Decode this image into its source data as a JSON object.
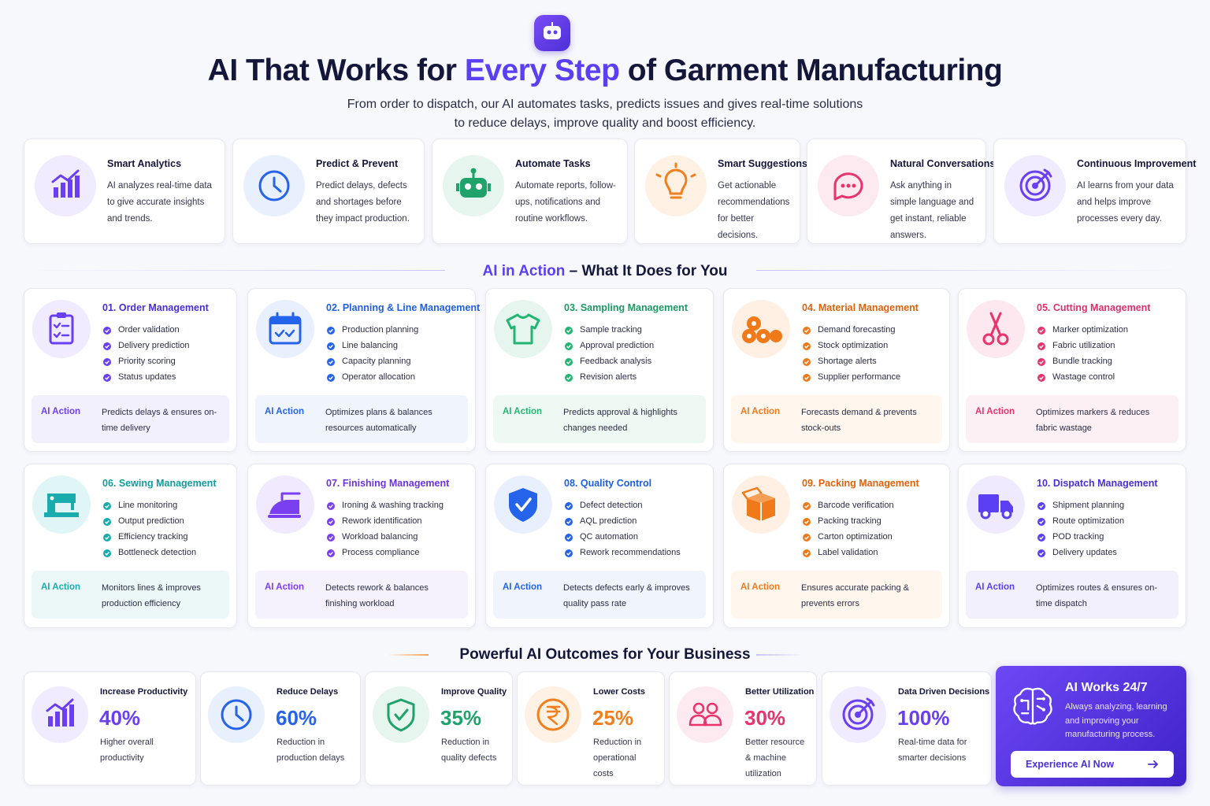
{
  "header": {
    "title": [
      "AI That Works for",
      "Every Step",
      "of Garment Manufacturing"
    ],
    "subtitle": [
      "From order to dispatch, our AI automates tasks, predicts issues and gives real-time solutions",
      "to reduce delays, improve quality and boost efficiency."
    ]
  },
  "features": [
    {
      "title": "Smart Analytics",
      "text": "AI analyzes real-time data to give accurate insights and trends."
    },
    {
      "title": "Predict & Prevent",
      "text": "Predict delays, defects and shortages before they impact production."
    },
    {
      "title": "Automate Tasks",
      "text": "Automate reports, follow-ups, notifications and routine workflows."
    },
    {
      "title": "Smart Suggestions",
      "text": "Get actionable recommendations for better decisions."
    },
    {
      "title": "Natural Conversations",
      "text": "Ask anything in simple language and get instant, reliable answers."
    },
    {
      "title": "Continuous Improvement",
      "text": "AI learns from your data and helps improve processes every day."
    }
  ],
  "section_action": {
    "title": [
      "AI in Action",
      "– What It Does for You"
    ]
  },
  "modules": [
    {
      "title": "01. Order Management",
      "bullets": [
        "Order validation",
        "Delivery prediction",
        "Priority scoring",
        "Status updates"
      ],
      "action_label": "AI Action",
      "action": "Predicts delays & ensures on-time delivery"
    },
    {
      "title": "02. Planning & Line Management",
      "bullets": [
        "Production planning",
        "Line balancing",
        "Capacity planning",
        "Operator allocation"
      ],
      "action_label": "AI Action",
      "action": "Optimizes plans & balances resources automatically"
    },
    {
      "title": "03. Sampling Management",
      "bullets": [
        "Sample tracking",
        "Approval prediction",
        "Feedback analysis",
        "Revision alerts"
      ],
      "action_label": "AI Action",
      "action": "Predicts approval & highlights changes needed"
    },
    {
      "title": "04. Material Management",
      "bullets": [
        "Demand forecasting",
        "Stock optimization",
        "Shortage alerts",
        "Supplier performance"
      ],
      "action_label": "AI Action",
      "action": "Forecasts demand & prevents stock-outs"
    },
    {
      "title": "05. Cutting Management",
      "bullets": [
        "Marker optimization",
        "Fabric utilization",
        "Bundle tracking",
        "Wastage control"
      ],
      "action_label": "AI Action",
      "action": "Optimizes markers & reduces fabric wastage"
    },
    {
      "title": "06. Sewing Management",
      "bullets": [
        "Line monitoring",
        "Output prediction",
        "Efficiency tracking",
        "Bottleneck detection"
      ],
      "action_label": "AI Action",
      "action": "Monitors lines & improves production efficiency"
    },
    {
      "title": "07. Finishing Management",
      "bullets": [
        "Ironing & washing tracking",
        "Rework identification",
        "Workload balancing",
        "Process compliance"
      ],
      "action_label": "AI Action",
      "action": "Detects rework & balances finishing workload"
    },
    {
      "title": "08. Quality Control",
      "bullets": [
        "Defect detection",
        "AQL prediction",
        "QC automation",
        "Rework recommendations"
      ],
      "action_label": "AI Action",
      "action": "Detects defects early & improves quality pass rate"
    },
    {
      "title": "09. Packing Management",
      "bullets": [
        "Barcode verification",
        "Packing tracking",
        "Carton optimization",
        "Label validation"
      ],
      "action_label": "AI Action",
      "action": "Ensures accurate packing & prevents errors"
    },
    {
      "title": "10. Dispatch Management",
      "bullets": [
        "Shipment planning",
        "Route optimization",
        "POD tracking",
        "Delivery updates"
      ],
      "action_label": "AI Action",
      "action": "Optimizes routes & ensures on-time dispatch"
    }
  ],
  "section_outcomes": {
    "title": "Powerful AI Outcomes for Your Business"
  },
  "outcomes": [
    {
      "title": "Increase Productivity",
      "value": "40%",
      "text": "Higher overall productivity"
    },
    {
      "title": "Reduce Delays",
      "value": "60%",
      "text": "Reduction in production delays"
    },
    {
      "title": "Improve Quality",
      "value": "35%",
      "text": "Reduction in quality defects"
    },
    {
      "title": "Lower Costs",
      "value": "25%",
      "text": "Reduction in operational costs"
    },
    {
      "title": "Better Utilization",
      "value": "30%",
      "text": "Better resource & machine utilization"
    },
    {
      "title": "Data Driven Decisions",
      "value": "100%",
      "text": "Real-time data for smarter decisions"
    }
  ],
  "cta": {
    "title": "AI Works 24/7",
    "text": "Always analyzing, learning and improving your manufacturing process.",
    "button": "Experience AI Now"
  }
}
